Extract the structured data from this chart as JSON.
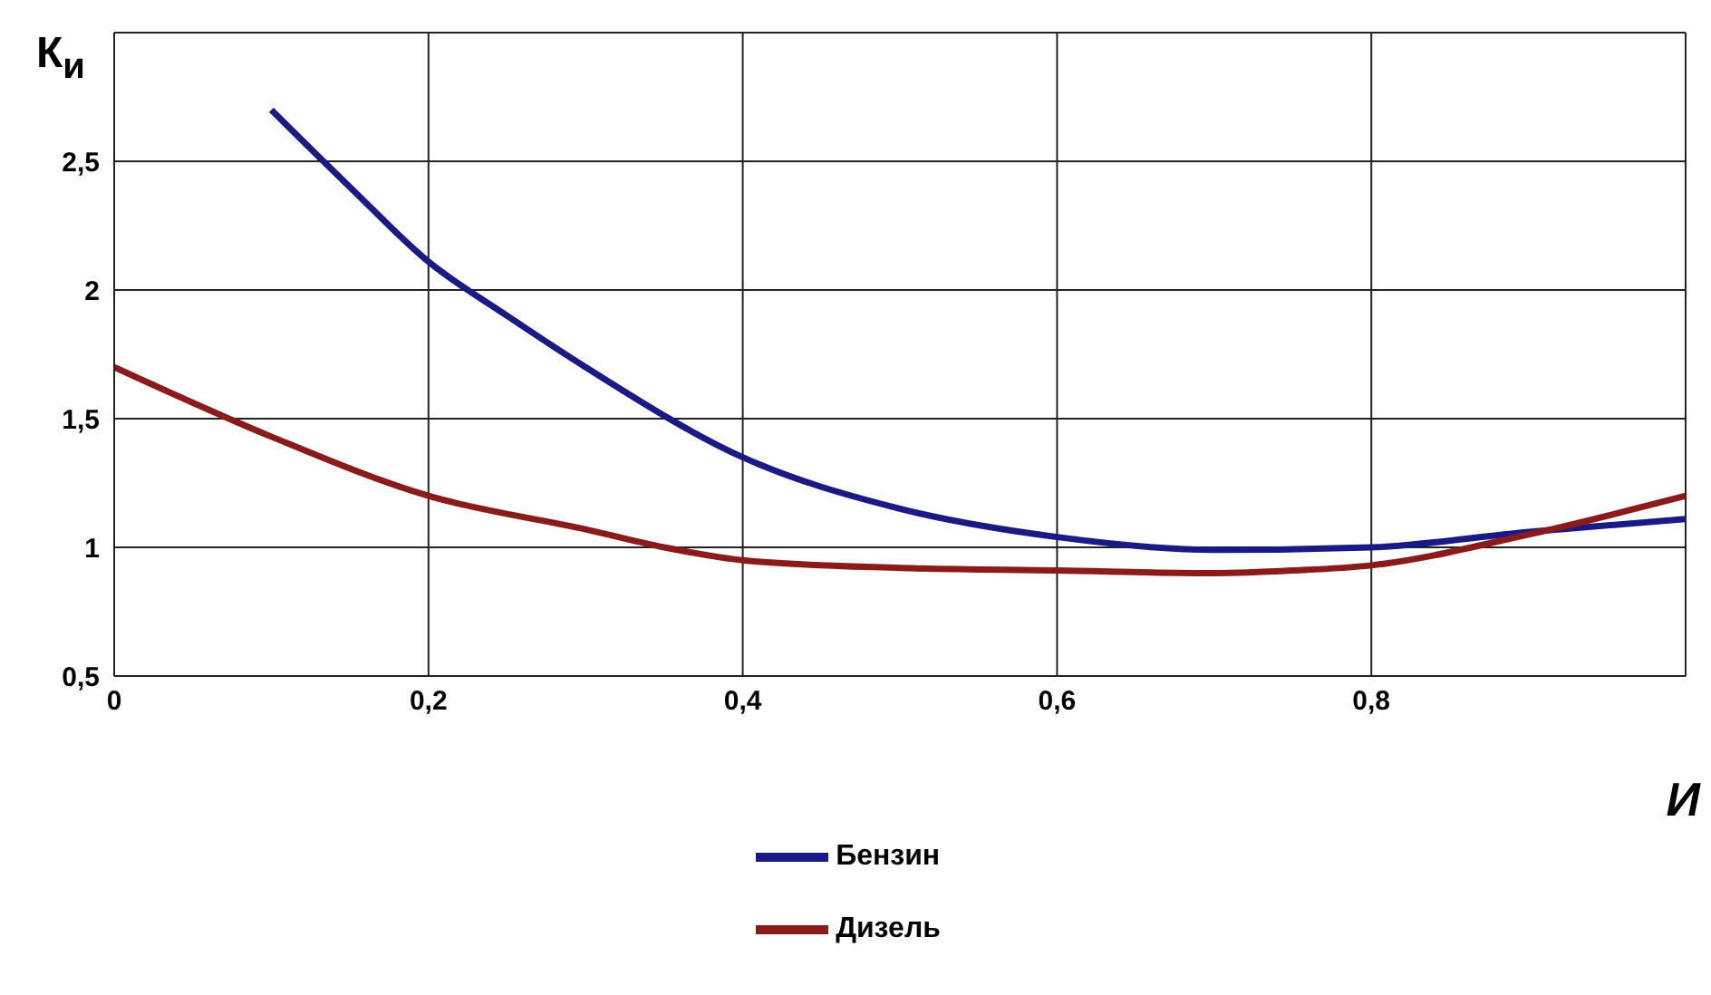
{
  "chart_data": {
    "type": "line",
    "xlabel": "И",
    "ylabel": "К$_{и}$",
    "xlim": [
      0,
      1
    ],
    "xticks": [
      0,
      {
        "value": 0.2,
        "label": "0,2"
      },
      {
        "value": 0.4,
        "label": "0,4"
      },
      {
        "value": 0.6,
        "label": "0,6"
      },
      {
        "value": 0.8,
        "label": "0,8"
      },
      {
        "value": 1,
        "label": null
      }
    ],
    "ylim": [
      0.5,
      3
    ],
    "yticks": [
      {
        "value": 0.5,
        "label": "0,5"
      },
      1,
      {
        "value": 1.5,
        "label": "1,5"
      },
      2,
      {
        "value": 2.5,
        "label": "2,5"
      },
      {
        "value": 3,
        "label": null
      }
    ],
    "grid": true,
    "legend": "bottom",
    "marker": "none",
    "line_style": "solid",
    "series": [
      {
        "name": "Бензин",
        "color": "#1a1a86",
        "x": [
          0.1,
          0.15,
          0.2,
          0.25,
          0.3,
          0.4,
          0.5,
          0.6,
          0.7,
          0.8,
          0.9,
          1.0
        ],
        "values": [
          2.7,
          2.4,
          2.11,
          1.9,
          1.7,
          1.35,
          1.15,
          1.04,
          0.99,
          1.0,
          1.06,
          1.11
        ]
      },
      {
        "name": "Дизель",
        "color": "#8b1a1a",
        "x": [
          0,
          0.1,
          0.2,
          0.3,
          0.35,
          0.4,
          0.5,
          0.6,
          0.7,
          0.75,
          0.8,
          0.9,
          1.0
        ],
        "values": [
          1.7,
          1.43,
          1.2,
          1.07,
          1.0,
          0.95,
          0.92,
          0.91,
          0.9,
          0.91,
          0.93,
          1.05,
          1.2
        ]
      }
    ]
  }
}
